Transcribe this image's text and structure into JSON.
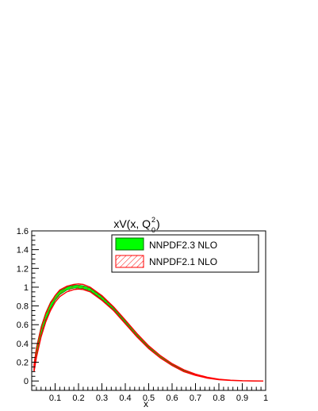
{
  "chart_data": {
    "type": "area",
    "title": "xV(x, Q0²)",
    "title_parts": {
      "main": "xV(x, Q",
      "sup": "2",
      "sub": "0",
      "close": ")"
    },
    "xlabel": "x",
    "ylabel": "",
    "xlim": [
      0,
      1
    ],
    "ylim": [
      -0.1,
      1.6
    ],
    "xticks": [
      0.1,
      0.2,
      0.3,
      0.4,
      0.5,
      0.6,
      0.7,
      0.8,
      0.9,
      1
    ],
    "xtick_labels": [
      "0.1",
      "0.2",
      "0.3",
      "0.4",
      "0.5",
      "0.6",
      "0.7",
      "0.8",
      "0.9",
      "1"
    ],
    "yticks": [
      0,
      0.2,
      0.4,
      0.6,
      0.8,
      1,
      1.2,
      1.4,
      1.6
    ],
    "ytick_labels": [
      "0",
      "0.2",
      "0.4",
      "0.6",
      "0.8",
      "1",
      "1.2",
      "1.4",
      "1.6"
    ],
    "legend_position": "top-right",
    "series": [
      {
        "name": "NNPDF2.3 NLO",
        "style": "solid-fill",
        "color": "#00ff00",
        "x": [
          0.01,
          0.02,
          0.04,
          0.06,
          0.08,
          0.1,
          0.12,
          0.15,
          0.18,
          0.2,
          0.22,
          0.25,
          0.3,
          0.35,
          0.4,
          0.45,
          0.5,
          0.55,
          0.6,
          0.65,
          0.7,
          0.75,
          0.8,
          0.85,
          0.9,
          0.95,
          0.99
        ],
        "upper": [
          0.19,
          0.36,
          0.58,
          0.73,
          0.84,
          0.91,
          0.96,
          1.0,
          1.02,
          1.02,
          1.015,
          0.99,
          0.9,
          0.78,
          0.64,
          0.5,
          0.37,
          0.265,
          0.18,
          0.115,
          0.07,
          0.038,
          0.018,
          0.008,
          0.003,
          0.001,
          0.0
        ],
        "lower": [
          0.11,
          0.27,
          0.49,
          0.65,
          0.77,
          0.86,
          0.92,
          0.97,
          0.99,
          0.99,
          0.985,
          0.96,
          0.87,
          0.76,
          0.62,
          0.48,
          0.355,
          0.25,
          0.17,
          0.105,
          0.062,
          0.033,
          0.015,
          0.006,
          0.002,
          0.0,
          0.0
        ]
      },
      {
        "name": "NNPDF2.1 NLO",
        "style": "hatched",
        "color": "#ff0000",
        "x": [
          0.01,
          0.02,
          0.04,
          0.06,
          0.08,
          0.1,
          0.12,
          0.15,
          0.18,
          0.2,
          0.22,
          0.25,
          0.3,
          0.35,
          0.4,
          0.45,
          0.5,
          0.55,
          0.6,
          0.65,
          0.7,
          0.75,
          0.8,
          0.85,
          0.9,
          0.95,
          0.99
        ],
        "upper": [
          0.17,
          0.34,
          0.56,
          0.72,
          0.83,
          0.91,
          0.97,
          1.01,
          1.03,
          1.035,
          1.03,
          1.0,
          0.91,
          0.79,
          0.65,
          0.505,
          0.375,
          0.27,
          0.185,
          0.12,
          0.073,
          0.04,
          0.019,
          0.008,
          0.003,
          0.001,
          0.0
        ],
        "lower": [
          0.1,
          0.25,
          0.47,
          0.63,
          0.75,
          0.84,
          0.9,
          0.95,
          0.975,
          0.98,
          0.975,
          0.95,
          0.86,
          0.75,
          0.61,
          0.47,
          0.345,
          0.245,
          0.165,
          0.1,
          0.06,
          0.031,
          0.014,
          0.006,
          0.002,
          0.0,
          0.0
        ]
      }
    ]
  }
}
